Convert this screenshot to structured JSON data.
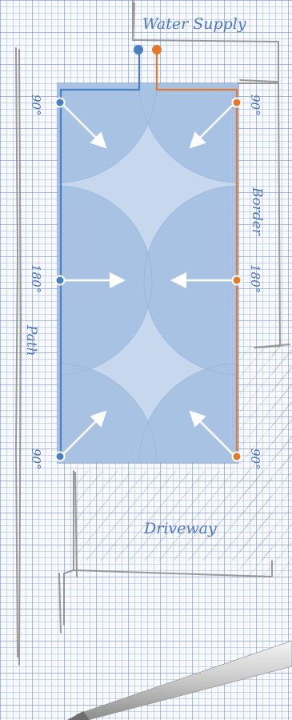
{
  "labels": {
    "water_supply": "Water Supply",
    "border": "Border",
    "path": "Path",
    "driveway": "Driveway"
  },
  "angles": {
    "top_left": "90°",
    "top_right": "90°",
    "mid_left": "180°",
    "mid_right": "180°",
    "bottom_left": "90°",
    "bottom_right": "90°"
  },
  "colors": {
    "ink": "#4f78b8",
    "pipe_blue": "#4a7fc0",
    "pipe_orange": "#e07a2e",
    "lawn_fill": "#c7d8ee",
    "spray_fill": "#a5c0e2",
    "sketch_line": "#8a8a8a"
  },
  "icons": {
    "sprinkler": "sprinkler-head-icon",
    "spray_arrow": "arrow-icon",
    "pencil": "pencil-icon"
  }
}
